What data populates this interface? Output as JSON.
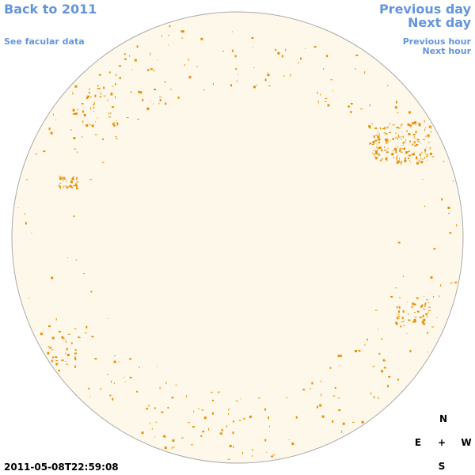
{
  "nav": {
    "back": "Back to 2011",
    "facular": "See facular data",
    "previous_day": "Previous day",
    "next_day": "Next day",
    "previous_hour": "Previous hour",
    "next_hour": "Next hour"
  },
  "timestamp": "2011-05-08T22:59:08",
  "compass": {
    "north": "N",
    "east": "E",
    "center": "+",
    "west": "W",
    "south": "S"
  }
}
